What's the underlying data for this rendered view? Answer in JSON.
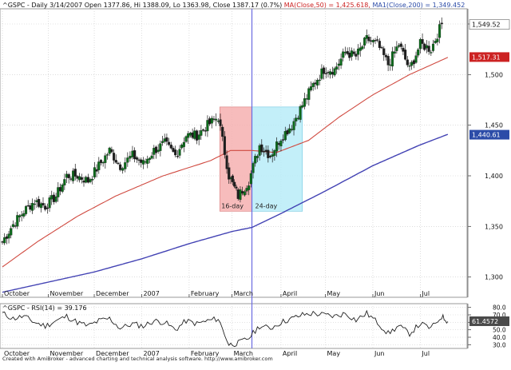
{
  "header": {
    "ticker_info": "^GSPC - Daily 3/14/2007 Open 1377.86, Hi 1388.09, Lo 1363.98, Close 1387.17 (0.7%)",
    "ma50_label": "MA(Close,50) = 1,425.618,",
    "ma200_label": "MA1(Close,200) = 1,349.452"
  },
  "rsi_panel": {
    "label": "^GSPC - RSI(14) = 39.176"
  },
  "credit": "Created with AmiBroker - advanced charting and technical analysis software. http://www.amibroker.com",
  "colors": {
    "candle": "#0b6b1a",
    "candle_down": "#1e1e1e",
    "ma50": "#d04a40",
    "ma200": "#4343b4",
    "rsi_line": "#222222",
    "pink_zone": "#f6b0b0",
    "blue_zone": "#b8ecf8",
    "vline": "#6a6ae0",
    "label_red": "#cc2222",
    "label_green": "#2a7a2a",
    "label_blue": "#2c4ca8"
  },
  "chart_data": [
    {
      "type": "line",
      "title": "^GSPC - Daily 3/14/2007 Open 1377.86, Hi 1388.09, Lo 1363.98, Close 1387.17 (0.7%)",
      "description_kind": "candlestick",
      "x_axis": {
        "type": "date",
        "range": [
          "2006-10-02",
          "2007-07-31"
        ],
        "ticks": [
          {
            "date": "2006-10-02",
            "label": "October"
          },
          {
            "date": "2006-11-01",
            "label": "November"
          },
          {
            "date": "2006-12-01",
            "label": "December"
          },
          {
            "date": "2007-01-01",
            "label": "2007"
          },
          {
            "date": "2007-02-01",
            "label": "February"
          },
          {
            "date": "2007-03-01",
            "label": "March"
          },
          {
            "date": "2007-04-02",
            "label": "April"
          },
          {
            "date": "2007-05-01",
            "label": "May"
          },
          {
            "date": "2007-06-01",
            "label": "Jun"
          },
          {
            "date": "2007-07-02",
            "label": "Jul"
          }
        ]
      },
      "y_axis": {
        "range": [
          1280,
          1565
        ],
        "ticks": [
          "1,300",
          "1,350",
          "1,400",
          "1,450",
          "1,500",
          "1,550"
        ]
      },
      "price_close": [
        [
          "2006-10-02",
          1335
        ],
        [
          "2006-10-09",
          1352
        ],
        [
          "2006-10-16",
          1365
        ],
        [
          "2006-10-23",
          1375
        ],
        [
          "2006-10-30",
          1370
        ],
        [
          "2006-11-06",
          1380
        ],
        [
          "2006-11-13",
          1400
        ],
        [
          "2006-11-20",
          1400
        ],
        [
          "2006-11-27",
          1395
        ],
        [
          "2006-12-04",
          1410
        ],
        [
          "2006-12-11",
          1425
        ],
        [
          "2006-12-18",
          1410
        ],
        [
          "2006-12-26",
          1420
        ],
        [
          "2007-01-02",
          1412
        ],
        [
          "2007-01-09",
          1425
        ],
        [
          "2007-01-16",
          1432
        ],
        [
          "2007-01-23",
          1420
        ],
        [
          "2007-01-30",
          1440
        ],
        [
          "2007-02-06",
          1440
        ],
        [
          "2007-02-13",
          1450
        ],
        [
          "2007-02-20",
          1458
        ],
        [
          "2007-02-27",
          1400
        ],
        [
          "2007-03-05",
          1380
        ],
        [
          "2007-03-12",
          1395
        ],
        [
          "2007-03-19",
          1430
        ],
        [
          "2007-03-26",
          1420
        ],
        [
          "2007-04-02",
          1438
        ],
        [
          "2007-04-09",
          1450
        ],
        [
          "2007-04-16",
          1470
        ],
        [
          "2007-04-23",
          1490
        ],
        [
          "2007-04-30",
          1505
        ],
        [
          "2007-05-07",
          1505
        ],
        [
          "2007-05-14",
          1522
        ],
        [
          "2007-05-21",
          1518
        ],
        [
          "2007-05-28",
          1535
        ],
        [
          "2007-06-04",
          1530
        ],
        [
          "2007-06-11",
          1510
        ],
        [
          "2007-06-18",
          1530
        ],
        [
          "2007-06-25",
          1505
        ],
        [
          "2007-07-02",
          1530
        ],
        [
          "2007-07-09",
          1525
        ],
        [
          "2007-07-16",
          1550
        ]
      ],
      "series": [
        {
          "name": "MA(Close,50)",
          "last_value": "1,517.31",
          "points": [
            [
              "2006-10-02",
              1310
            ],
            [
              "2006-10-25",
              1335
            ],
            [
              "2006-11-20",
              1360
            ],
            [
              "2006-12-15",
              1380
            ],
            [
              "2007-01-15",
              1400
            ],
            [
              "2007-02-15",
              1415
            ],
            [
              "2007-02-28",
              1425
            ],
            [
              "2007-03-14",
              1425
            ],
            [
              "2007-03-30",
              1423
            ],
            [
              "2007-04-20",
              1435
            ],
            [
              "2007-05-10",
              1458
            ],
            [
              "2007-06-01",
              1480
            ],
            [
              "2007-06-25",
              1500
            ],
            [
              "2007-07-20",
              1517
            ]
          ]
        },
        {
          "name": "MA1(Close,200)",
          "last_value": "1,440.61",
          "points": [
            [
              "2006-10-02",
              1285
            ],
            [
              "2006-11-01",
              1295
            ],
            [
              "2006-12-01",
              1305
            ],
            [
              "2007-01-01",
              1318
            ],
            [
              "2007-02-01",
              1333
            ],
            [
              "2007-03-01",
              1345
            ],
            [
              "2007-03-14",
              1349
            ],
            [
              "2007-04-01",
              1362
            ],
            [
              "2007-05-01",
              1385
            ],
            [
              "2007-06-01",
              1410
            ],
            [
              "2007-07-01",
              1430
            ],
            [
              "2007-07-20",
              1441
            ]
          ]
        }
      ],
      "current_price_label": "1,549.52",
      "annotations": [
        {
          "type": "zone",
          "label": "16-day",
          "x_start": "2007-02-21",
          "x_end": "2007-03-14",
          "y_low": 1365,
          "y_high": 1468
        },
        {
          "type": "zone",
          "label": "24-day",
          "x_start": "2007-03-14",
          "x_end": "2007-04-16",
          "y_low": 1365,
          "y_high": 1468
        },
        {
          "type": "vertical_line",
          "x": "2007-03-14"
        }
      ]
    },
    {
      "type": "line",
      "title": "^GSPC - RSI(14) = 39.176",
      "y_axis": {
        "range": [
          25,
          85
        ],
        "ticks": [
          "80.0",
          "70.0",
          "60.0",
          "50.0",
          "40.0",
          "30.0"
        ]
      },
      "current_value_label": "61.4572",
      "series": [
        {
          "name": "RSI(14)",
          "points": [
            [
              "2006-10-02",
              72
            ],
            [
              "2006-10-09",
              65
            ],
            [
              "2006-10-16",
              68
            ],
            [
              "2006-10-23",
              60
            ],
            [
              "2006-10-30",
              55
            ],
            [
              "2006-11-06",
              62
            ],
            [
              "2006-11-13",
              68
            ],
            [
              "2006-11-20",
              60
            ],
            [
              "2006-11-27",
              55
            ],
            [
              "2006-12-04",
              62
            ],
            [
              "2006-12-11",
              65
            ],
            [
              "2006-12-18",
              52
            ],
            [
              "2006-12-26",
              58
            ],
            [
              "2007-01-02",
              55
            ],
            [
              "2007-01-09",
              62
            ],
            [
              "2007-01-16",
              60
            ],
            [
              "2007-01-23",
              50
            ],
            [
              "2007-01-30",
              62
            ],
            [
              "2007-02-06",
              58
            ],
            [
              "2007-02-13",
              62
            ],
            [
              "2007-02-20",
              65
            ],
            [
              "2007-02-27",
              30
            ],
            [
              "2007-03-05",
              32
            ],
            [
              "2007-03-12",
              39
            ],
            [
              "2007-03-19",
              55
            ],
            [
              "2007-03-26",
              52
            ],
            [
              "2007-04-02",
              60
            ],
            [
              "2007-04-09",
              65
            ],
            [
              "2007-04-16",
              70
            ],
            [
              "2007-04-23",
              72
            ],
            [
              "2007-04-30",
              70
            ],
            [
              "2007-05-07",
              68
            ],
            [
              "2007-05-14",
              72
            ],
            [
              "2007-05-21",
              63
            ],
            [
              "2007-05-28",
              72
            ],
            [
              "2007-06-04",
              60
            ],
            [
              "2007-06-11",
              45
            ],
            [
              "2007-06-18",
              55
            ],
            [
              "2007-06-25",
              45
            ],
            [
              "2007-07-02",
              58
            ],
            [
              "2007-07-09",
              52
            ],
            [
              "2007-07-16",
              68
            ],
            [
              "2007-07-20",
              61
            ]
          ]
        }
      ]
    }
  ]
}
